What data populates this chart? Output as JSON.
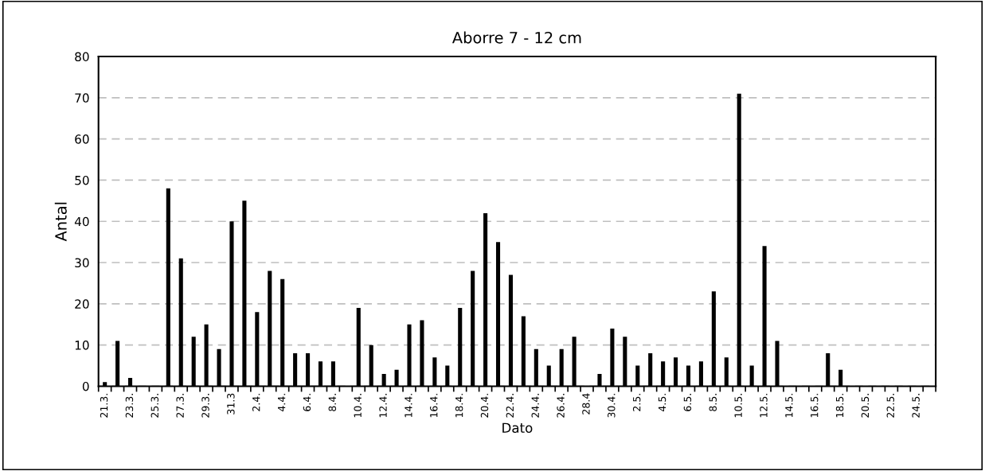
{
  "chart_data": {
    "type": "bar",
    "title": "Aborre 7 - 12 cm",
    "xlabel": "Dato",
    "ylabel": "Antal",
    "categories": [
      "21.3.",
      null,
      "23.3.",
      null,
      "25.3.",
      null,
      "27.3.",
      null,
      "29.3.",
      null,
      "31.3",
      null,
      "2.4.",
      null,
      "4.4.",
      null,
      "6.4.",
      null,
      "8.4.",
      null,
      "10.4.",
      null,
      "12.4.",
      null,
      "14.4.",
      null,
      "16.4.",
      null,
      "18.4.",
      null,
      "20.4.",
      null,
      "22.4.",
      null,
      "24.4.",
      null,
      "26.4.",
      null,
      "28.4",
      null,
      "30.4.",
      null,
      "2.5.",
      null,
      "4.5.",
      null,
      "6.5.",
      null,
      "8.5.",
      null,
      "10.5.",
      null,
      "12.5.",
      null,
      "14.5.",
      null,
      "16.5.",
      null,
      "18.5.",
      null,
      "20.5.",
      null,
      "22.5.",
      null,
      "24.5.",
      null
    ],
    "values": [
      1,
      11,
      2,
      0,
      0,
      48,
      31,
      12,
      15,
      9,
      40,
      45,
      18,
      28,
      26,
      8,
      8,
      6,
      6,
      0,
      19,
      10,
      3,
      4,
      15,
      16,
      7,
      5,
      19,
      28,
      42,
      35,
      27,
      17,
      9,
      5,
      9,
      12,
      0,
      3,
      14,
      12,
      5,
      8,
      6,
      7,
      5,
      6,
      23,
      7,
      71,
      5,
      34,
      11,
      0,
      0,
      0,
      8,
      4,
      0,
      0,
      0,
      0,
      0,
      0,
      0
    ],
    "color": "#000000",
    "ylim": [
      0,
      80
    ],
    "yticks": [
      0,
      10,
      20,
      30,
      40,
      50,
      60,
      70,
      80
    ],
    "grid": "y"
  }
}
